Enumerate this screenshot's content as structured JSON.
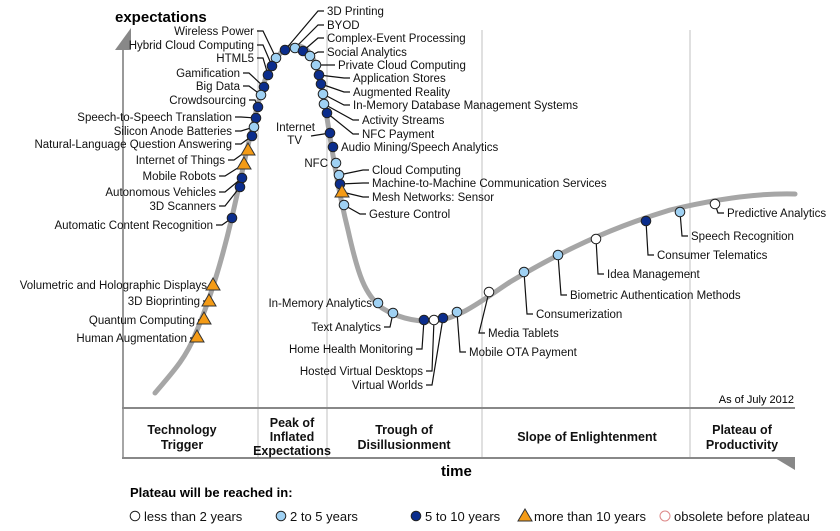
{
  "axes": {
    "y_label": "expectations",
    "x_label": "time"
  },
  "as_of": "As of July 2012",
  "phases": [
    [
      "Technology",
      "Trigger"
    ],
    [
      "Peak of",
      "Inflated",
      "Expectations"
    ],
    [
      "Trough of",
      "Disillusionment"
    ],
    [
      "Slope of Enlightenment"
    ],
    [
      "Plateau of",
      "Productivity"
    ]
  ],
  "legend": {
    "title": "Plateau will be reached in:",
    "items": [
      {
        "label": "less than 2 years",
        "cat": "lt2"
      },
      {
        "label": "2 to 5 years",
        "cat": "2to5"
      },
      {
        "label": "5 to 10 years",
        "cat": "5to10"
      },
      {
        "label": "more than 10 years",
        "cat": "gt10"
      },
      {
        "label": "obsolete before plateau",
        "cat": "obsolete"
      }
    ]
  },
  "colors": {
    "lt2": "#ffffff",
    "2to5": "#9fd1f3",
    "5to10": "#0b2d8c",
    "gt10": "#f49b16",
    "curve": "#a6a6a6",
    "grid": "#d6d6d6"
  },
  "technologies": [
    {
      "label": "Wireless Power",
      "cat": "2to5"
    },
    {
      "label": "Hybrid Cloud Computing",
      "cat": "5to10"
    },
    {
      "label": "HTML5",
      "cat": "5to10"
    },
    {
      "label": "Gamification",
      "cat": "5to10"
    },
    {
      "label": "Big Data",
      "cat": "2to5"
    },
    {
      "label": "Crowdsourcing",
      "cat": "5to10"
    },
    {
      "label": "Speech-to-Speech Translation",
      "cat": "5to10"
    },
    {
      "label": "Silicon Anode Batteries",
      "cat": "2to5"
    },
    {
      "label": "Natural-Language Question Answering",
      "cat": "5to10"
    },
    {
      "label": "Internet of Things",
      "cat": "gt10"
    },
    {
      "label": "Mobile Robots",
      "cat": "gt10"
    },
    {
      "label": "Autonomous Vehicles",
      "cat": "5to10"
    },
    {
      "label": "3D Scanners",
      "cat": "5to10"
    },
    {
      "label": "Automatic Content Recognition",
      "cat": "5to10"
    },
    {
      "label": "Volumetric and Holographic Displays",
      "cat": "gt10"
    },
    {
      "label": "3D Bioprinting",
      "cat": "gt10"
    },
    {
      "label": "Quantum Computing",
      "cat": "gt10"
    },
    {
      "label": "Human Augmentation",
      "cat": "gt10"
    },
    {
      "label": "3D Printing",
      "cat": "5to10"
    },
    {
      "label": "BYOD",
      "cat": "2to5"
    },
    {
      "label": "Complex-Event Processing",
      "cat": "5to10"
    },
    {
      "label": "Social Analytics",
      "cat": "2to5"
    },
    {
      "label": "Private Cloud Computing",
      "cat": "2to5"
    },
    {
      "label": "Application Stores",
      "cat": "5to10"
    },
    {
      "label": "Augmented Reality",
      "cat": "5to10"
    },
    {
      "label": "In-Memory Database Management Systems",
      "cat": "2to5"
    },
    {
      "label": "Activity Streams",
      "cat": "2to5"
    },
    {
      "label": "NFC Payment",
      "cat": "5to10"
    },
    {
      "label": "Internet TV",
      "cat": "5to10"
    },
    {
      "label": "Audio Mining/Speech Analytics",
      "cat": "5to10"
    },
    {
      "label": "NFC",
      "cat": "2to5"
    },
    {
      "label": "Cloud Computing",
      "cat": "2to5"
    },
    {
      "label": "Machine-to-Machine Communication Services",
      "cat": "5to10"
    },
    {
      "label": "Mesh Networks: Sensor",
      "cat": "gt10"
    },
    {
      "label": "Gesture Control",
      "cat": "2to5"
    },
    {
      "label": "In-Memory Analytics",
      "cat": "2to5"
    },
    {
      "label": "Text Analytics",
      "cat": "2to5"
    },
    {
      "label": "Home Health Monitoring",
      "cat": "5to10"
    },
    {
      "label": "Hosted Virtual Desktops",
      "cat": "lt2"
    },
    {
      "label": "Virtual Worlds",
      "cat": "5to10"
    },
    {
      "label": "Mobile OTA Payment",
      "cat": "2to5"
    },
    {
      "label": "Media Tablets",
      "cat": "lt2"
    },
    {
      "label": "Consumerization",
      "cat": "2to5"
    },
    {
      "label": "Biometric Authentication Methods",
      "cat": "2to5"
    },
    {
      "label": "Idea Management",
      "cat": "lt2"
    },
    {
      "label": "Consumer Telematics",
      "cat": "5to10"
    },
    {
      "label": "Speech Recognition",
      "cat": "2to5"
    },
    {
      "label": "Predictive Analytics",
      "cat": "lt2"
    }
  ]
}
